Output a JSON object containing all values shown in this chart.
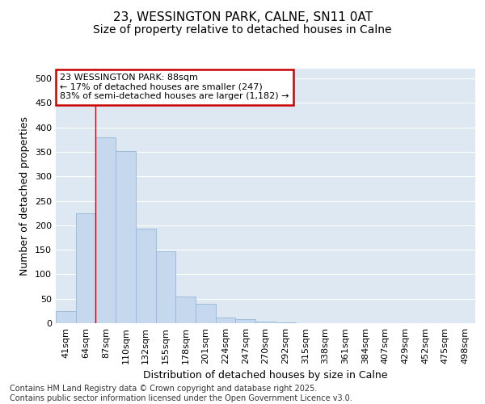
{
  "title_line1": "23, WESSINGTON PARK, CALNE, SN11 0AT",
  "title_line2": "Size of property relative to detached houses in Calne",
  "xlabel": "Distribution of detached houses by size in Calne",
  "ylabel": "Number of detached properties",
  "categories": [
    "41sqm",
    "64sqm",
    "87sqm",
    "110sqm",
    "132sqm",
    "155sqm",
    "178sqm",
    "201sqm",
    "224sqm",
    "247sqm",
    "270sqm",
    "292sqm",
    "315sqm",
    "338sqm",
    "361sqm",
    "384sqm",
    "407sqm",
    "429sqm",
    "452sqm",
    "475sqm",
    "498sqm"
  ],
  "values": [
    25,
    225,
    380,
    352,
    193,
    147,
    55,
    40,
    11,
    8,
    3,
    2,
    0,
    0,
    0,
    0,
    0,
    0,
    0,
    0,
    0
  ],
  "bar_color": "#c5d8ed",
  "bar_edge_color": "#93b8d8",
  "vline_x_index": 2,
  "vline_color": "#cc0000",
  "annotation_text": "23 WESSINGTON PARK: 88sqm\n← 17% of detached houses are smaller (247)\n83% of semi-detached houses are larger (1,182) →",
  "annotation_box_color": "#cc0000",
  "ylim": [
    0,
    520
  ],
  "yticks": [
    0,
    50,
    100,
    150,
    200,
    250,
    300,
    350,
    400,
    450,
    500
  ],
  "plot_bg_color": "#dde8f2",
  "grid_color": "#ffffff",
  "footer_text": "Contains HM Land Registry data © Crown copyright and database right 2025.\nContains public sector information licensed under the Open Government Licence v3.0.",
  "title_fontsize": 11,
  "subtitle_fontsize": 10,
  "label_fontsize": 9,
  "tick_fontsize": 8,
  "footer_fontsize": 7,
  "annotation_fontsize": 8
}
